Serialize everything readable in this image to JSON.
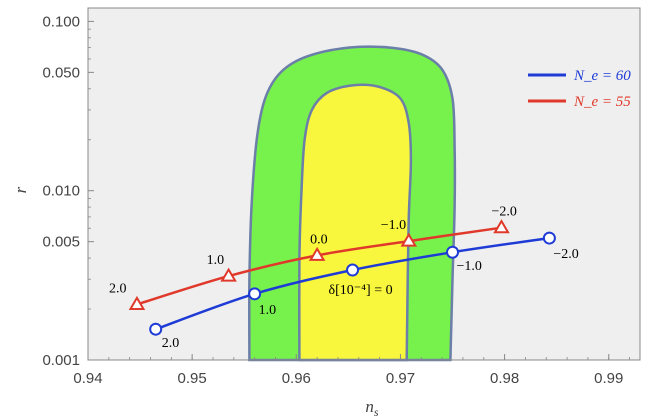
{
  "chart_data": {
    "type": "line",
    "xlabel": "n_s",
    "ylabel": "r",
    "xlim": [
      0.94,
      0.993
    ],
    "ylim": [
      0.001,
      0.12
    ],
    "y_scale": "log",
    "x_ticks": [
      "0.94",
      "0.95",
      "0.96",
      "0.97",
      "0.98",
      "0.99"
    ],
    "y_ticks": [
      "0.001",
      "0.005",
      "0.010",
      "0.050",
      "0.100"
    ],
    "grid": false,
    "legend_position": "top-right",
    "legend": [
      {
        "label": "N_e = 60",
        "color": "#1f3bd6"
      },
      {
        "label": "N_e = 55",
        "color": "#e0392b"
      }
    ],
    "contours": {
      "outer_color": "#77f24c",
      "inner_color": "#f8f73e",
      "edge_color": "#6b7fa8",
      "outer": [
        [
          0.9555,
          0.001
        ],
        [
          0.9555,
          0.003
        ],
        [
          0.9557,
          0.008
        ],
        [
          0.9562,
          0.02
        ],
        [
          0.957,
          0.035
        ],
        [
          0.9585,
          0.05
        ],
        [
          0.961,
          0.062
        ],
        [
          0.965,
          0.07
        ],
        [
          0.969,
          0.07
        ],
        [
          0.972,
          0.064
        ],
        [
          0.974,
          0.052
        ],
        [
          0.975,
          0.035
        ],
        [
          0.9752,
          0.018
        ],
        [
          0.9752,
          0.008
        ],
        [
          0.975,
          0.003
        ],
        [
          0.9748,
          0.001
        ]
      ],
      "inner": [
        [
          0.9603,
          0.001
        ],
        [
          0.9603,
          0.004
        ],
        [
          0.9605,
          0.01
        ],
        [
          0.9608,
          0.02
        ],
        [
          0.9615,
          0.03
        ],
        [
          0.963,
          0.038
        ],
        [
          0.9655,
          0.042
        ],
        [
          0.968,
          0.041
        ],
        [
          0.97,
          0.035
        ],
        [
          0.9708,
          0.025
        ],
        [
          0.971,
          0.015
        ],
        [
          0.9708,
          0.007
        ],
        [
          0.9707,
          0.003
        ],
        [
          0.9706,
          0.001
        ]
      ]
    },
    "series": [
      {
        "name": "N_e = 60",
        "color": "#1f3bd6",
        "marker": "circle",
        "x": [
          0.9465,
          0.956,
          0.9654,
          0.975,
          0.9843
        ],
        "y": [
          0.00152,
          0.00246,
          0.0034,
          0.00433,
          0.00525
        ],
        "point_labels": [
          "2.0",
          "1.0",
          "δ[10⁻⁴] = 0",
          "−1.0",
          "−2.0"
        ]
      },
      {
        "name": "N_e = 55",
        "color": "#e0392b",
        "marker": "triangle",
        "x": [
          0.9447,
          0.9535,
          0.962,
          0.9708,
          0.9797
        ],
        "y": [
          0.00213,
          0.00313,
          0.00415,
          0.00504,
          0.00605
        ],
        "point_labels": [
          "2.0",
          "1.0",
          "0.0",
          "−1.0",
          "−2.0"
        ]
      }
    ]
  }
}
